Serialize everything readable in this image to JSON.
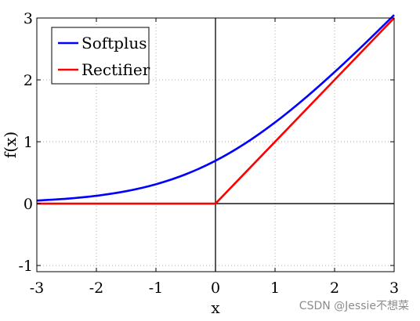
{
  "chart_data": {
    "type": "line",
    "xlabel": "x",
    "ylabel": "f(x)",
    "xlim": [
      -3,
      3
    ],
    "ylim": [
      -1.1,
      3
    ],
    "xticks": [
      -3,
      -2,
      -1,
      0,
      1,
      2,
      3
    ],
    "yticks": [
      -1,
      0,
      1,
      2,
      3
    ],
    "xtick_labels": [
      "-3",
      "-2",
      "-1",
      "0",
      "1",
      "2",
      "3"
    ],
    "ytick_labels": [
      "-1",
      "0",
      "1",
      "2",
      "3"
    ],
    "grid": true,
    "legend_position": "top-left",
    "x": [
      -3,
      -2.5,
      -2,
      -1.5,
      -1,
      -0.5,
      0,
      0.5,
      1,
      1.5,
      2,
      2.5,
      3
    ],
    "series": [
      {
        "name": "Softplus",
        "color": "#0000ff",
        "values": [
          0.049,
          0.079,
          0.127,
          0.201,
          0.313,
          0.474,
          0.693,
          0.974,
          1.313,
          1.701,
          2.127,
          2.579,
          3.049
        ]
      },
      {
        "name": "Rectifier",
        "color": "#ff0000",
        "values": [
          0,
          0,
          0,
          0,
          0,
          0,
          0,
          0.5,
          1,
          1.5,
          2,
          2.5,
          3
        ]
      }
    ]
  },
  "watermark": "CSDN @Jessie不想菜"
}
